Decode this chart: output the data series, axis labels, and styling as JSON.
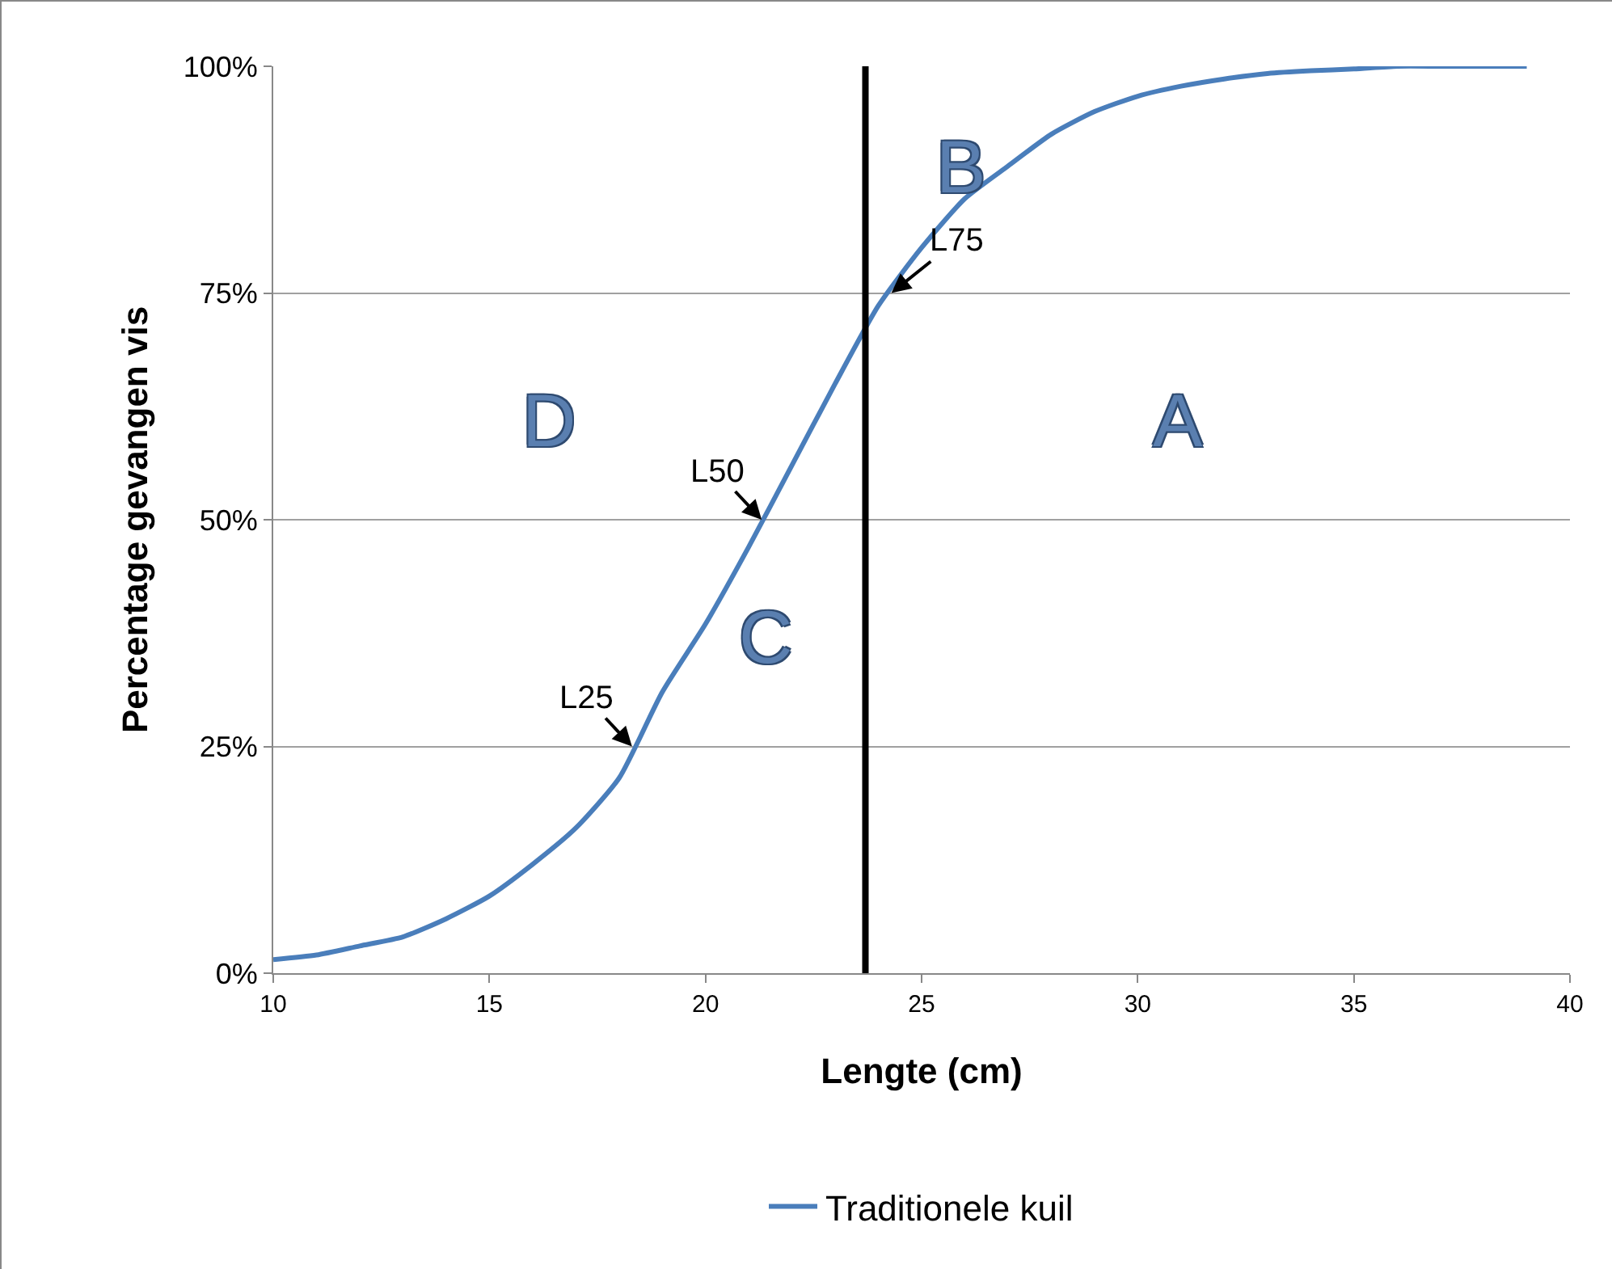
{
  "chart_data": {
    "type": "line",
    "xlabel": "Lengte (cm)",
    "ylabel": "Percentage gevangen vis",
    "xlim": [
      10,
      40
    ],
    "xticks": [
      10,
      15,
      20,
      25,
      30,
      35,
      40
    ],
    "ylim": [
      0,
      100
    ],
    "yticks": [
      {
        "value": 0,
        "label": "0%"
      },
      {
        "value": 25,
        "label": "25%"
      },
      {
        "value": 50,
        "label": "50%"
      },
      {
        "value": 75,
        "label": "75%"
      },
      {
        "value": 100,
        "label": "100%"
      }
    ],
    "grid": "y",
    "legend": "bottom",
    "marker": "none",
    "line_style": "solid",
    "series": [
      {
        "name": "Traditionele kuil",
        "color": "#4a7ebb",
        "x": [
          10,
          11,
          12,
          13,
          14,
          15,
          16,
          17,
          18,
          19,
          20,
          21,
          22,
          23,
          24,
          25,
          26,
          27,
          28,
          29,
          30,
          31,
          32,
          33,
          34,
          35,
          36,
          37,
          38,
          39
        ],
        "values": [
          1.5,
          2,
          3,
          4,
          6,
          8.5,
          12,
          16,
          21.5,
          31,
          38.5,
          47,
          56,
          65,
          73.6,
          80,
          85.4,
          89,
          92.5,
          95,
          96.7,
          97.8,
          98.6,
          99.2,
          99.5,
          99.7,
          100,
          100,
          100,
          100
        ]
      }
    ],
    "ref_lines": [
      {
        "axis": "x",
        "value": 23.7,
        "color": "#000000",
        "line_style": "solid"
      }
    ],
    "annotations": [
      {
        "text": "L25",
        "x": 18.3,
        "y": 25
      },
      {
        "text": "L50",
        "x": 21.3,
        "y": 50
      },
      {
        "text": "L75",
        "x": 24.3,
        "y": 75
      },
      "A",
      "B",
      "C",
      "D"
    ]
  }
}
